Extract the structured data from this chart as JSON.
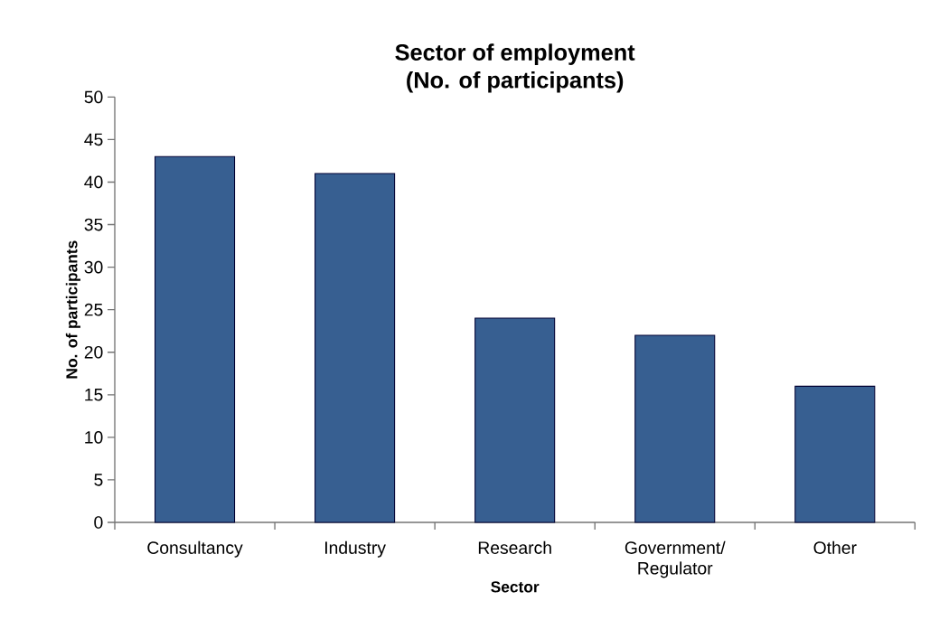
{
  "chart_data": {
    "type": "bar",
    "title": "Sector of employment",
    "subtitle": "(No. of participants)",
    "xlabel": "Sector",
    "ylabel": "No. of participants",
    "categories": [
      "Consultancy",
      "Industry",
      "Research",
      "Government/ Regulator",
      "Other"
    ],
    "values": [
      43,
      41,
      24,
      22,
      16
    ],
    "color": "#375f91",
    "ylim": [
      0,
      50
    ],
    "yticks": [
      0,
      5,
      10,
      15,
      20,
      25,
      30,
      35,
      40,
      45,
      50
    ]
  }
}
